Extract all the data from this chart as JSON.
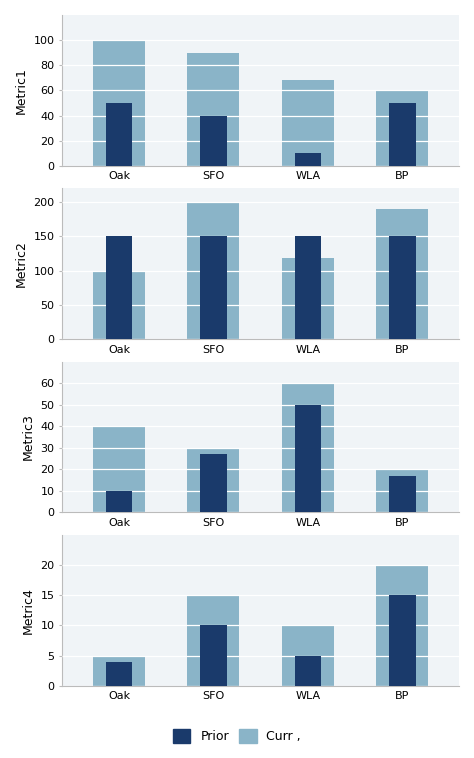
{
  "metrics": [
    "Metric1",
    "Metric2",
    "Metric3",
    "Metric4"
  ],
  "categories": [
    "Oak",
    "SFO",
    "WLA",
    "BP"
  ],
  "prior_color": "#1a3a6b",
  "curr_color": "#8ab4c8",
  "background_color": "#f0f4f7",
  "data": {
    "Metric1": {
      "prior": [
        50,
        40,
        10,
        50
      ],
      "curr": [
        100,
        90,
        68,
        60
      ]
    },
    "Metric2": {
      "prior": [
        150,
        150,
        150,
        150
      ],
      "curr": [
        100,
        200,
        118,
        190
      ]
    },
    "Metric3": {
      "prior": [
        10,
        27,
        50,
        17
      ],
      "curr": [
        40,
        30,
        60,
        20
      ]
    },
    "Metric4": {
      "prior": [
        4,
        10,
        5,
        15
      ],
      "curr": [
        5,
        15,
        10,
        20
      ]
    }
  },
  "ylims": {
    "Metric1": [
      0,
      120
    ],
    "Metric2": [
      0,
      220
    ],
    "Metric3": [
      0,
      70
    ],
    "Metric4": [
      0,
      25
    ]
  },
  "yticks": {
    "Metric1": [
      0,
      20,
      40,
      60,
      80,
      100
    ],
    "Metric2": [
      0,
      50,
      100,
      150,
      200
    ],
    "Metric3": [
      0,
      10,
      20,
      30,
      40,
      50,
      60
    ],
    "Metric4": [
      0,
      5,
      10,
      15,
      20
    ]
  },
  "curr_bar_width": 0.55,
  "prior_bar_width": 0.28,
  "legend_labels": [
    "Prior",
    "Curr ,"
  ],
  "ylabel_fontsize": 9,
  "tick_fontsize": 8,
  "legend_fontsize": 9
}
